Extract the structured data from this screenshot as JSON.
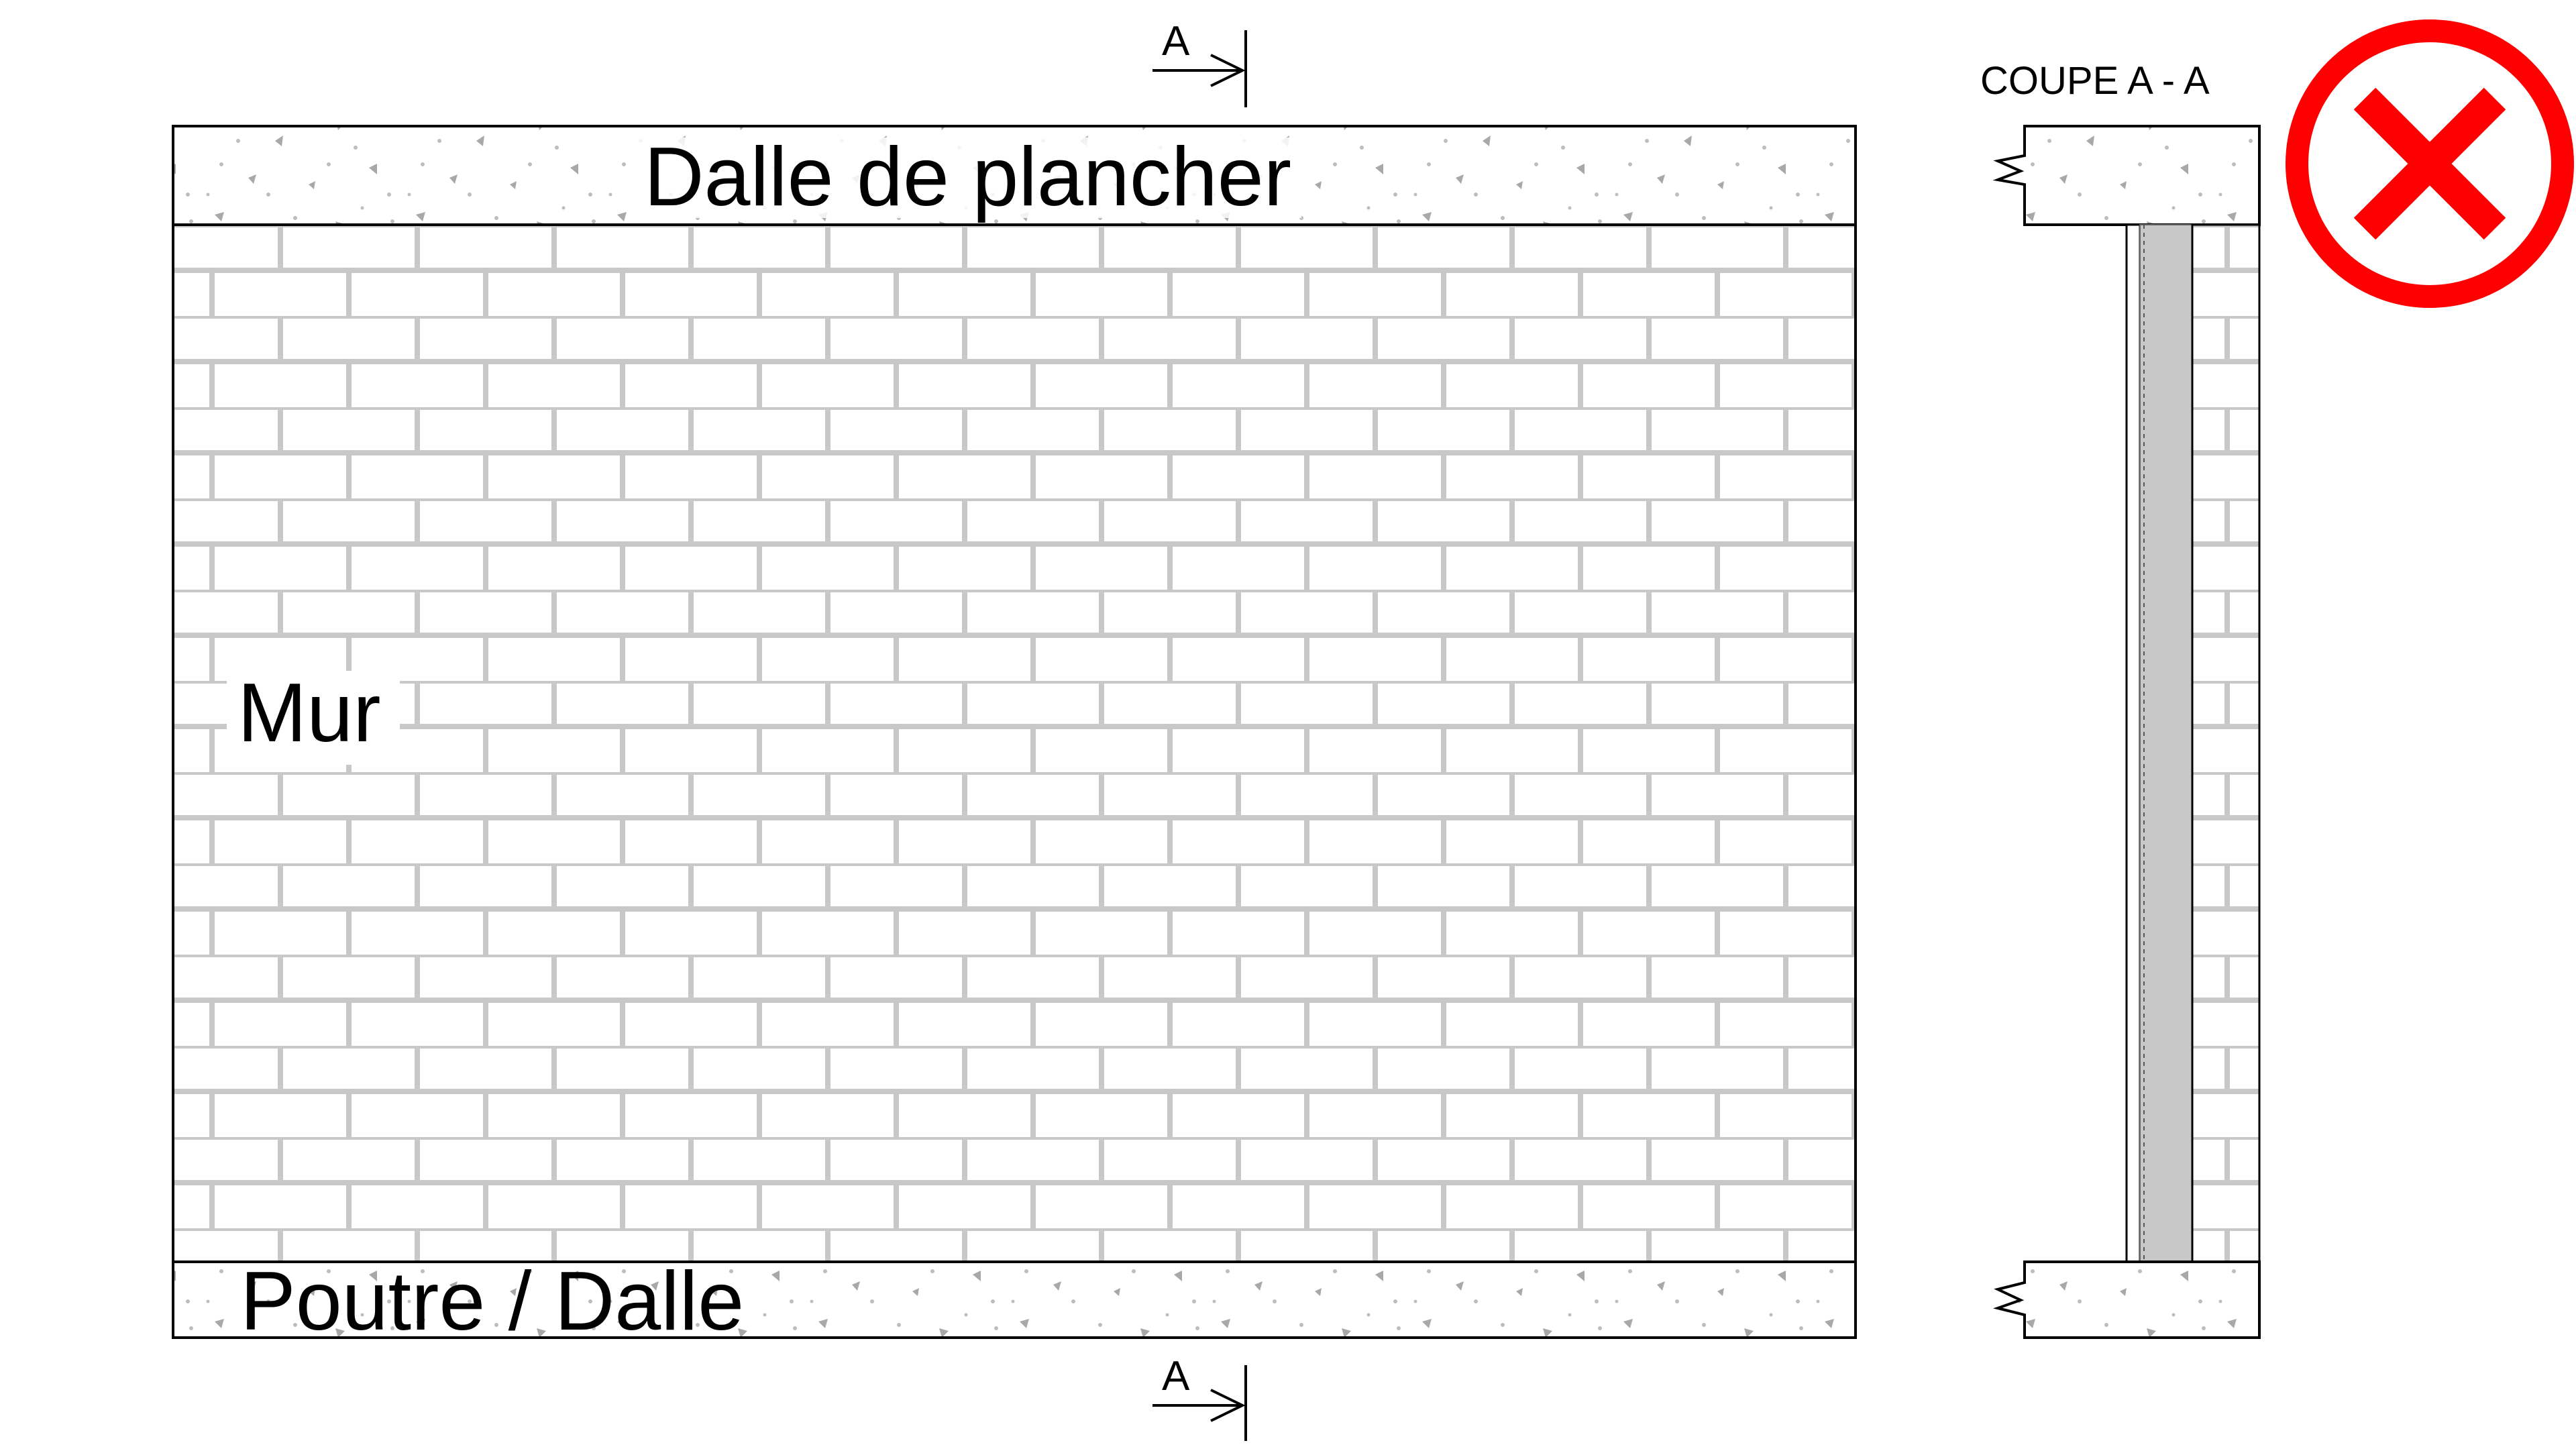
{
  "labels": {
    "floor_slab": "Dalle de plancher",
    "wall": "Mur",
    "beam_slab": "Poutre / Dalle",
    "section_title": "COUPE A - A",
    "section_mark_top": "A",
    "section_mark_bottom": "A"
  },
  "status": {
    "verdict_icon": "error-cross-icon",
    "color": "#ff0000"
  },
  "colors": {
    "outline": "#000000",
    "brick_joint": "#c8c8c8",
    "concrete_speckle": "#9a9a9a",
    "insulation": "#c8c8c8"
  }
}
